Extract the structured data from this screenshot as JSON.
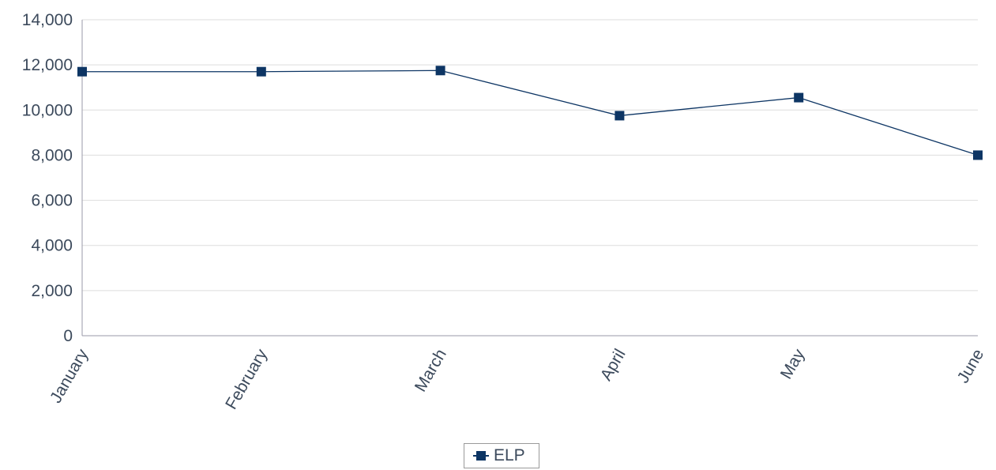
{
  "chart_data": {
    "type": "line",
    "categories": [
      "January",
      "February",
      "March",
      "April",
      "May",
      "June"
    ],
    "series": [
      {
        "name": "ELP",
        "values": [
          11700,
          11700,
          11750,
          9750,
          10550,
          8000
        ],
        "color": "#0d3564"
      }
    ],
    "title": "",
    "xlabel": "",
    "ylabel": "",
    "ylim": [
      0,
      14000
    ],
    "yticks": [
      0,
      2000,
      4000,
      6000,
      8000,
      10000,
      12000,
      14000
    ],
    "ytick_labels": [
      "0",
      "2,000",
      "4,000",
      "6,000",
      "8,000",
      "10,000",
      "12,000",
      "14,000"
    ],
    "grid": true,
    "legend_position": "bottom-center",
    "colors": {
      "gridline": "#dddddd",
      "axis": "#9a9aa8",
      "text": "#3c4a5c"
    }
  }
}
